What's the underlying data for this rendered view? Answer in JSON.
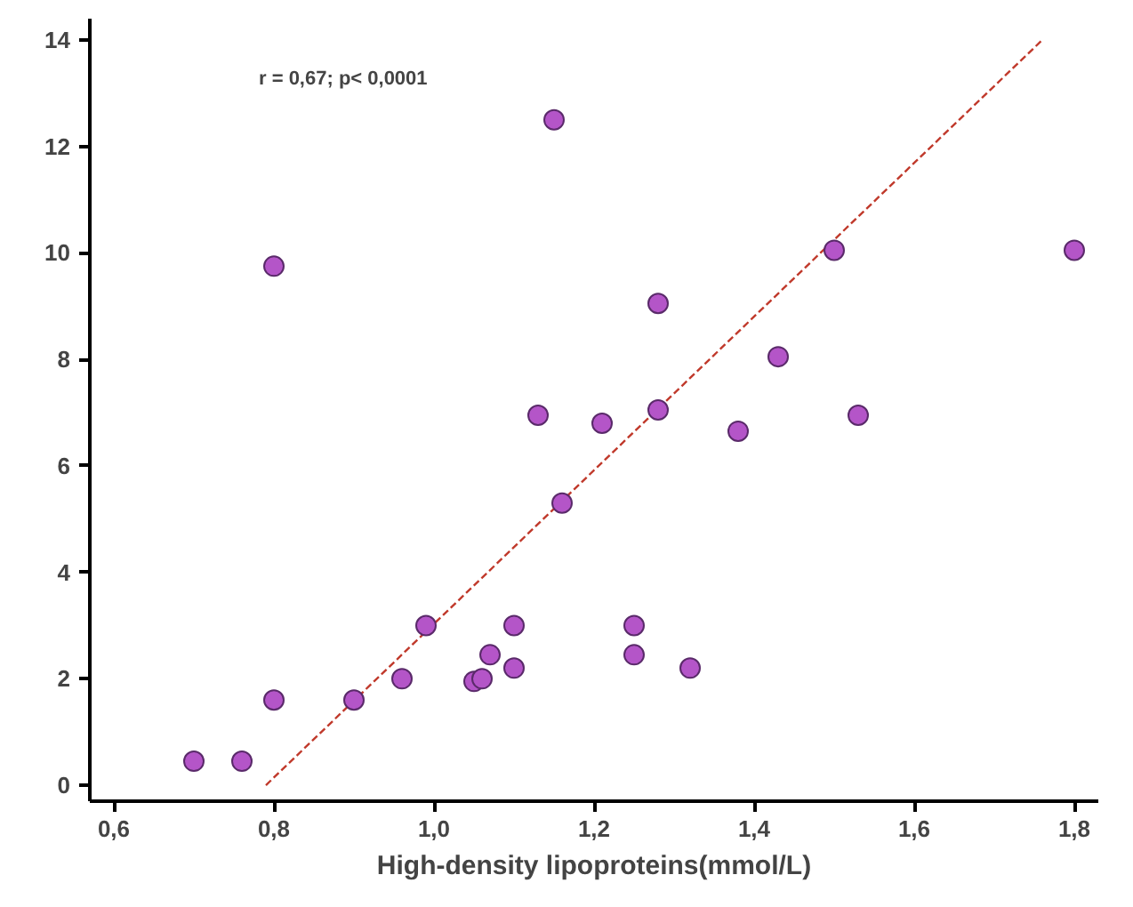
{
  "chart_data": {
    "type": "scatter",
    "xlabel": "High-density lipoproteins(mmol/L)",
    "annotations": [
      "r = 0,67; p< 0,0001"
    ],
    "xlim": [
      0.57,
      1.83
    ],
    "ylim": [
      -0.3,
      14.4
    ],
    "xticks": [
      {
        "value": 0.6,
        "label": "0,6"
      },
      {
        "value": 0.8,
        "label": "0,8"
      },
      {
        "value": 1.0,
        "label": "1,0"
      },
      {
        "value": 1.2,
        "label": "1,2"
      },
      {
        "value": 1.4,
        "label": "1,4"
      },
      {
        "value": 1.6,
        "label": "1,6"
      },
      {
        "value": 1.8,
        "label": "1,8"
      }
    ],
    "yticks": [
      0,
      2,
      4,
      6,
      8,
      10,
      12,
      14
    ],
    "grid": false,
    "series": [
      {
        "marker": "circle",
        "color": "#b455c8",
        "x": [
          0.7,
          0.76,
          0.8,
          0.8,
          0.9,
          0.96,
          0.99,
          1.05,
          1.06,
          1.07,
          1.1,
          1.1,
          1.13,
          1.15,
          1.16,
          1.21,
          1.25,
          1.25,
          1.28,
          1.28,
          1.32,
          1.38,
          1.43,
          1.5,
          1.53,
          1.8
        ],
        "values": [
          0.45,
          0.45,
          1.6,
          9.75,
          1.6,
          2.0,
          3.0,
          1.95,
          2.0,
          2.45,
          3.0,
          2.2,
          6.95,
          12.5,
          5.3,
          6.8,
          3.0,
          2.45,
          9.05,
          7.05,
          2.2,
          6.65,
          8.05,
          10.05,
          6.95,
          10.05
        ]
      },
      {
        "type": "line",
        "color": "#c0392b",
        "line_style": "dashed",
        "x": [
          0.79,
          1.76
        ],
        "values": [
          0,
          14
        ]
      }
    ]
  }
}
